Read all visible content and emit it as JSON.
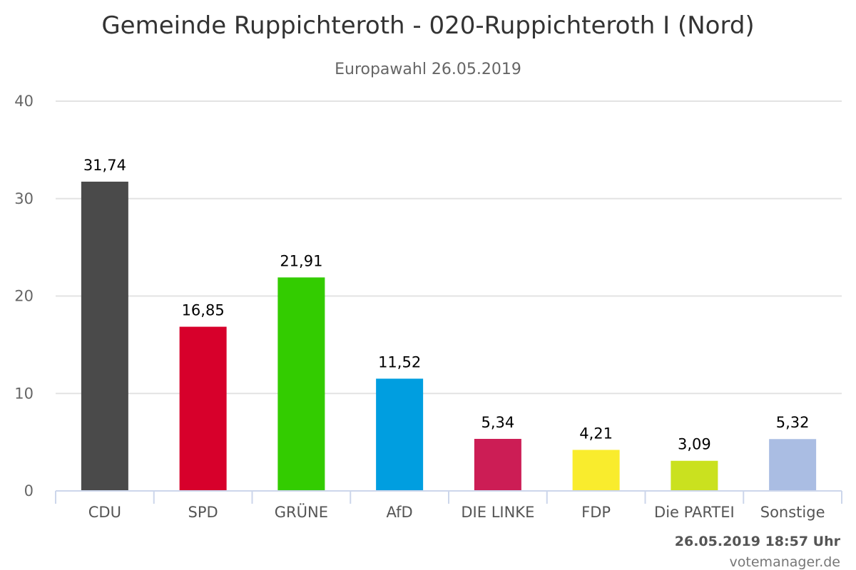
{
  "chart_data": {
    "type": "bar",
    "title": "Gemeinde Ruppichteroth - 020-Ruppichteroth I (Nord)",
    "subtitle": "Europawahl 26.05.2019",
    "categories": [
      "CDU",
      "SPD",
      "GRÜNE",
      "AfD",
      "DIE LINKE",
      "FDP",
      "Die PARTEI",
      "Sonstige"
    ],
    "values": [
      31.74,
      16.85,
      21.91,
      11.52,
      5.34,
      4.21,
      3.09,
      5.32
    ],
    "data_labels": [
      "31,74",
      "16,85",
      "21,91",
      "11,52",
      "5,34",
      "4,21",
      "3,09",
      "5,32"
    ],
    "colors": [
      "#4a4a4a",
      "#d7002b",
      "#33cc00",
      "#009ee0",
      "#cc1d55",
      "#f9ec2d",
      "#cae11f",
      "#aabde3"
    ],
    "yticks": [
      "0",
      "10",
      "20",
      "30",
      "40"
    ],
    "ylim": [
      0,
      40
    ],
    "grid": true,
    "legend": "none"
  },
  "footer": {
    "timestamp": "26.05.2019 18:57 Uhr",
    "credit": "votemanager.de"
  }
}
